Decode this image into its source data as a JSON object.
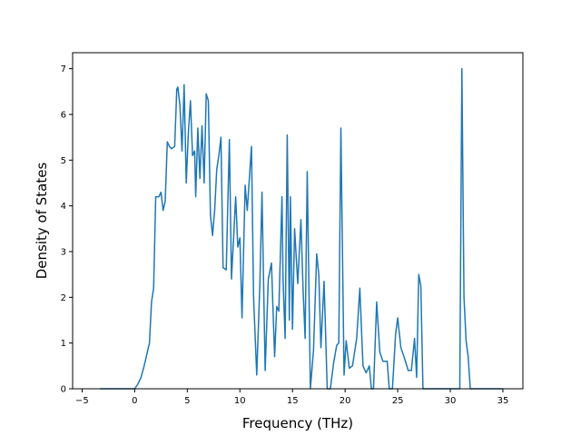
{
  "chart_data": {
    "type": "line",
    "title": "",
    "xlabel": "Frequency (THz)",
    "ylabel": "Density of States",
    "xlim": [
      -5.9,
      36.9
    ],
    "ylim": [
      0,
      7.35
    ],
    "xticks": [
      -5,
      0,
      5,
      10,
      15,
      20,
      25,
      30,
      35
    ],
    "xtick_labels": [
      "−5",
      "0",
      "5",
      "10",
      "15",
      "20",
      "25",
      "30",
      "35"
    ],
    "yticks": [
      0,
      1,
      2,
      3,
      4,
      5,
      6,
      7
    ],
    "ytick_labels": [
      "0",
      "1",
      "2",
      "3",
      "4",
      "5",
      "6",
      "7"
    ],
    "grid": false,
    "legend": null,
    "series": [
      {
        "color": "#1f77b4",
        "x": [
          -3.3,
          0,
          0.3,
          0.6,
          0.9,
          1.2,
          1.4,
          1.6,
          1.8,
          2.0,
          2.3,
          2.5,
          2.7,
          2.9,
          3.1,
          3.3,
          3.5,
          3.8,
          4.0,
          4.1,
          4.3,
          4.5,
          4.7,
          4.9,
          5.1,
          5.3,
          5.5,
          5.7,
          5.8,
          6.0,
          6.2,
          6.4,
          6.6,
          6.8,
          7.0,
          7.2,
          7.4,
          7.6,
          7.8,
          8.0,
          8.2,
          8.4,
          8.7,
          9.0,
          9.2,
          9.4,
          9.6,
          9.8,
          10.0,
          10.2,
          10.5,
          10.7,
          10.9,
          11.1,
          11.3,
          11.6,
          11.9,
          12.1,
          12.4,
          12.7,
          13.0,
          13.3,
          13.5,
          13.7,
          14.0,
          14.1,
          14.3,
          14.5,
          14.7,
          14.8,
          15.0,
          15.2,
          15.5,
          15.8,
          16.0,
          16.2,
          16.4,
          16.7,
          17.0,
          17.3,
          17.5,
          17.7,
          18.0,
          18.3,
          18.6,
          18.9,
          19.2,
          19.4,
          19.6,
          19.9,
          20.1,
          20.4,
          20.7,
          21.1,
          21.4,
          21.7,
          22.0,
          22.3,
          22.5,
          22.7,
          23.0,
          23.3,
          23.6,
          24.0,
          24.2,
          24.5,
          24.8,
          25.0,
          25.3,
          25.6,
          26.0,
          26.3,
          26.6,
          26.8,
          27.0,
          27.2,
          27.4,
          27.6,
          30.9,
          31.1,
          31.3,
          31.5,
          31.7,
          31.9,
          35.0
        ],
        "values": [
          0,
          0,
          0.1,
          0.25,
          0.5,
          0.8,
          1.0,
          1.9,
          2.2,
          4.2,
          4.2,
          4.3,
          3.9,
          4.1,
          5.4,
          5.3,
          5.25,
          5.3,
          6.55,
          6.6,
          6.2,
          5.2,
          6.65,
          4.5,
          5.6,
          6.3,
          5.1,
          5.2,
          4.2,
          5.7,
          4.6,
          5.75,
          4.5,
          6.45,
          6.3,
          3.8,
          3.35,
          3.9,
          4.8,
          5.1,
          5.5,
          2.65,
          2.6,
          5.45,
          2.4,
          3.3,
          4.2,
          3.1,
          3.3,
          1.55,
          4.45,
          3.9,
          4.6,
          5.3,
          2.0,
          0.3,
          2.3,
          4.3,
          0.4,
          2.4,
          2.75,
          0.7,
          1.8,
          1.7,
          4.2,
          2.4,
          1.1,
          5.55,
          1.5,
          4.2,
          1.3,
          3.5,
          2.3,
          3.7,
          2.2,
          1.1,
          4.75,
          0,
          0.85,
          2.95,
          2.5,
          0.9,
          2.35,
          0,
          0,
          0.55,
          0.95,
          1.0,
          5.7,
          0.3,
          1.05,
          0.45,
          0.5,
          1.1,
          2.2,
          0.5,
          0.35,
          0.5,
          0,
          0,
          1.9,
          0.8,
          0.6,
          0.6,
          0,
          0,
          1.2,
          1.55,
          0.9,
          0.7,
          0.4,
          0.4,
          1.1,
          0.25,
          2.5,
          2.25,
          0,
          0,
          0,
          7.0,
          2.0,
          1.05,
          0.7,
          0,
          0
        ]
      }
    ]
  }
}
